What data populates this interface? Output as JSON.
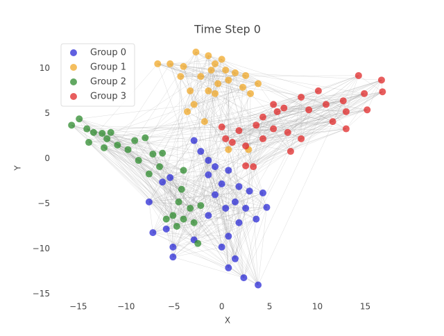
{
  "chart_data": {
    "type": "scatter",
    "title": "Time Step 0",
    "xlabel": "X",
    "ylabel": "Y",
    "xlim": [
      -16.8,
      18.3
    ],
    "ylim": [
      -15.5,
      12.8
    ],
    "xticks": [
      {
        "value": -15,
        "label": "−15"
      },
      {
        "value": -10,
        "label": "−10"
      },
      {
        "value": -5,
        "label": "−5"
      },
      0,
      5,
      10,
      15
    ],
    "yticks": [
      {
        "value": -15,
        "label": "−15"
      },
      {
        "value": -10,
        "label": "−10"
      },
      {
        "value": -5,
        "label": "−5"
      },
      0,
      5,
      10
    ],
    "legend": "upper left",
    "series": [
      {
        "name": "Group 0",
        "color": "#2b2bd6",
        "x": [
          -2.9,
          -2.2,
          -1.4,
          -0.7,
          0.7,
          -1.4,
          0,
          1.8,
          2.9,
          4.3,
          1.4,
          2.5,
          4.7,
          3.6,
          1.8,
          0.7,
          0,
          1.4,
          0.7,
          2.3,
          3.8,
          -5.4,
          -6.2,
          -7.6,
          -5.8,
          -7.2,
          -5.1,
          -5.1,
          -2.9,
          -1.4,
          -0.7,
          0.4
        ],
        "y": [
          2.0,
          0.8,
          -0.2,
          -0.9,
          -1.3,
          -1.8,
          -2.8,
          -3.1,
          -3.6,
          -3.8,
          -4.8,
          -5.5,
          -5.4,
          -6.7,
          -7.1,
          -8.6,
          -9.8,
          -11.1,
          -12.1,
          -13.2,
          -14.0,
          -2.1,
          -2.6,
          -4.8,
          -7.8,
          -8.2,
          -9.8,
          -10.9,
          -9.0,
          -6.3,
          -4.0,
          -5.5
        ]
      },
      {
        "name": "Group 1",
        "color": "#f0a828",
        "x": [
          -6.7,
          -5.4,
          -4.0,
          -2.7,
          -1.4,
          -0.7,
          0.4,
          1.4,
          2.5,
          0.7,
          -0.4,
          -2.2,
          -3.3,
          -3.6,
          -2.9,
          -1.8,
          3.8,
          3.0,
          -1.4,
          0,
          -1.1,
          2.2,
          -4.3,
          0.7,
          2.8,
          -0.7
        ],
        "y": [
          10.5,
          10.5,
          10.2,
          11.8,
          11.4,
          10.5,
          9.8,
          9.5,
          9.2,
          8.7,
          8.3,
          9.1,
          7.5,
          5.2,
          6.0,
          4.1,
          8.3,
          7.2,
          7.5,
          11.0,
          9.8,
          7.9,
          9.1,
          1.0,
          1.0,
          7.2
        ]
      },
      {
        "name": "Group 2",
        "color": "#2e8b2e",
        "x": [
          -15.7,
          -14.9,
          -14.1,
          -13.4,
          -12.5,
          -11.6,
          -13.9,
          -12.3,
          -10.9,
          -9.8,
          -9.1,
          -8.0,
          -8.7,
          -7.2,
          -6.2,
          -6.5,
          -7.6,
          -4.0,
          -4.2,
          -4.5,
          -3.3,
          -4.0,
          -4.7,
          -2.2,
          -2.9,
          -5.1,
          -2.5,
          -5.8,
          -12.0
        ],
        "y": [
          3.7,
          4.4,
          3.3,
          2.9,
          2.8,
          2.9,
          1.8,
          1.2,
          1.5,
          1.0,
          2.0,
          2.3,
          -0.2,
          0.5,
          0.6,
          -0.9,
          -1.7,
          -1.3,
          -3.4,
          -4.8,
          -5.5,
          -6.7,
          -7.5,
          -5.2,
          -7.1,
          -6.3,
          -9.4,
          -6.7,
          2.2
        ]
      },
      {
        "name": "Group 3",
        "color": "#e02828",
        "x": [
          0,
          0.4,
          1.1,
          2.5,
          3.3,
          2.5,
          3.6,
          4.3,
          5.4,
          5.8,
          6.5,
          6.9,
          5.4,
          7.2,
          8.3,
          9.1,
          10.1,
          10.9,
          11.6,
          12.7,
          13.0,
          14.3,
          14.9,
          15.2,
          16.7,
          16.8,
          13.0,
          8.3,
          4.3,
          1.8
        ],
        "y": [
          3.5,
          2.2,
          1.8,
          1.4,
          -0.9,
          -0.8,
          3.7,
          4.6,
          6.0,
          5.2,
          5.6,
          2.9,
          3.3,
          0.8,
          6.8,
          5.4,
          7.5,
          6.0,
          4.1,
          6.4,
          3.3,
          9.2,
          7.2,
          5.4,
          8.7,
          7.4,
          5.2,
          2.2,
          2.2,
          3.1
        ]
      }
    ]
  }
}
